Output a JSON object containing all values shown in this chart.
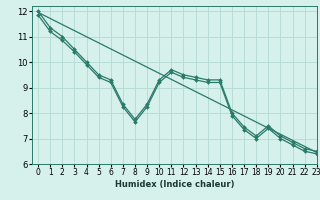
{
  "title": "",
  "xlabel": "Humidex (Indice chaleur)",
  "xlim": [
    -0.5,
    23
  ],
  "ylim": [
    6,
    12.2
  ],
  "yticks": [
    6,
    7,
    8,
    9,
    10,
    11,
    12
  ],
  "xticks": [
    0,
    1,
    2,
    3,
    4,
    5,
    6,
    7,
    8,
    9,
    10,
    11,
    12,
    13,
    14,
    15,
    16,
    17,
    18,
    19,
    20,
    21,
    22,
    23
  ],
  "bg_color": "#d6f0ec",
  "grid_color": "#b8dcd6",
  "line_color": "#2a7a6a",
  "line1_y": [
    12.0,
    11.35,
    11.0,
    10.5,
    10.0,
    9.5,
    9.3,
    8.35,
    7.75,
    8.35,
    9.3,
    9.7,
    9.5,
    9.4,
    9.3,
    9.3,
    8.0,
    7.45,
    7.1,
    7.5,
    7.1,
    6.85,
    6.6,
    6.5
  ],
  "line2_y": [
    11.85,
    11.2,
    10.85,
    10.4,
    9.9,
    9.4,
    9.2,
    8.25,
    7.65,
    8.25,
    9.2,
    9.6,
    9.4,
    9.3,
    9.2,
    9.2,
    7.9,
    7.35,
    7.0,
    7.4,
    7.0,
    6.75,
    6.5,
    6.4
  ],
  "trend_x": [
    0,
    23
  ],
  "trend_y": [
    11.95,
    6.45
  ],
  "xlabel_fontsize": 6,
  "tick_fontsize": 5.5
}
